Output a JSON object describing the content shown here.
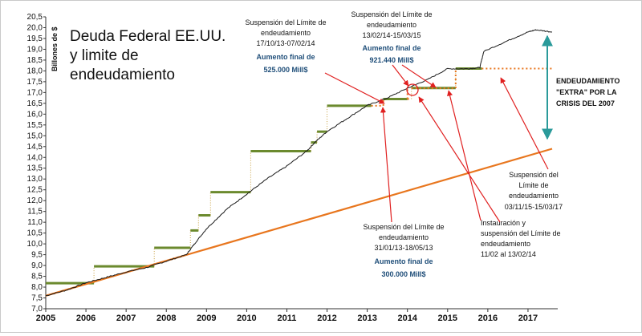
{
  "chart_data": {
    "type": "line",
    "title_lines": [
      "Deuda Federal EE.UU.",
      "y limite de",
      "endeudamiento"
    ],
    "ylabel": "Billones de $",
    "xlabel": "",
    "xlim": [
      2005,
      2017.7
    ],
    "ylim": [
      7.0,
      20.5
    ],
    "y_ticks": [
      "7,0",
      "7,5",
      "8,0",
      "8,5",
      "9,0",
      "9,5",
      "10,0",
      "10,5",
      "11,0",
      "11,5",
      "12,0",
      "12,5",
      "13,0",
      "13,5",
      "14,0",
      "14,5",
      "15,0",
      "15,5",
      "16,0",
      "16,5",
      "17,0",
      "17,5",
      "18,0",
      "18,5",
      "19,0",
      "19,5",
      "20,0",
      "20,5"
    ],
    "x_ticks": [
      "2005",
      "2006",
      "2007",
      "2008",
      "2009",
      "2010",
      "2011",
      "2012",
      "2013",
      "2014",
      "2015",
      "2016",
      "2017"
    ],
    "series": [
      {
        "kind": "debt",
        "points": [
          [
            2005.0,
            7.6
          ],
          [
            2005.5,
            7.85
          ],
          [
            2006.0,
            8.2
          ],
          [
            2006.5,
            8.45
          ],
          [
            2007.0,
            8.7
          ],
          [
            2007.5,
            8.9
          ],
          [
            2008.0,
            9.2
          ],
          [
            2008.5,
            9.5
          ],
          [
            2008.7,
            10.0
          ],
          [
            2009.0,
            10.7
          ],
          [
            2009.5,
            11.6
          ],
          [
            2010.0,
            12.3
          ],
          [
            2010.5,
            13.0
          ],
          [
            2011.0,
            13.6
          ],
          [
            2011.5,
            14.3
          ],
          [
            2011.7,
            14.7
          ],
          [
            2012.0,
            15.2
          ],
          [
            2012.5,
            15.8
          ],
          [
            2013.0,
            16.4
          ],
          [
            2013.5,
            16.75
          ],
          [
            2014.0,
            17.2
          ],
          [
            2014.5,
            17.6
          ],
          [
            2015.0,
            18.1
          ],
          [
            2015.5,
            18.1
          ],
          [
            2015.8,
            18.15
          ],
          [
            2015.9,
            18.9
          ],
          [
            2016.5,
            19.4
          ],
          [
            2017.0,
            19.8
          ],
          [
            2017.2,
            19.9
          ],
          [
            2017.6,
            19.8
          ]
        ]
      },
      {
        "kind": "debt_limit",
        "steps": [
          [
            2005.0,
            2006.2,
            8.18
          ],
          [
            2006.2,
            2007.7,
            8.96
          ],
          [
            2007.7,
            2008.6,
            9.82
          ],
          [
            2008.6,
            2008.8,
            10.62
          ],
          [
            2008.8,
            2009.1,
            11.32
          ],
          [
            2009.1,
            2010.1,
            12.39
          ],
          [
            2010.1,
            2011.6,
            14.29
          ],
          [
            2011.6,
            2011.75,
            14.69
          ],
          [
            2011.75,
            2012.0,
            15.19
          ],
          [
            2012.0,
            2013.1,
            16.39
          ],
          [
            2013.4,
            2014.0,
            16.7
          ],
          [
            2014.1,
            2015.2,
            17.21
          ],
          [
            2015.2,
            2015.85,
            18.11
          ]
        ]
      },
      {
        "kind": "suspension_extra",
        "steps": [
          [
            2013.1,
            2013.4,
            16.39
          ],
          [
            2014.0,
            2014.1,
            16.7
          ],
          [
            2014.1,
            2015.2,
            17.2
          ],
          [
            2015.85,
            2017.6,
            18.11
          ]
        ]
      },
      {
        "kind": "trend",
        "points": [
          [
            2005.0,
            7.6
          ],
          [
            2017.6,
            14.4
          ]
        ]
      }
    ]
  },
  "labels": {
    "debt_end": "19,8",
    "trend_end": "14,4",
    "gap": "5,4"
  },
  "annotations": {
    "extra": [
      "ENDEUDAMIENTO",
      "\"EXTRA\" POR LA",
      "CRISIS DEL 2007"
    ],
    "susp_2013_14": [
      "Suspensión del Límite de",
      "endeudamiento",
      "17/10/13-07/02/14",
      "Aumento final de",
      "525.000 Mill$"
    ],
    "susp_2014_15": [
      "Suspensión del Límite de",
      "endeudamiento",
      "13/02/14-15/03/15",
      "Aumento final de",
      "921.440 Mill$"
    ],
    "susp_2013": [
      "Suspensión del Límite de",
      "endeudamiento",
      "31/01/13-18/05/13",
      "Aumento final de",
      "300.000 Mill$"
    ],
    "inst_2014": [
      "Instauración y",
      "suspensión del Límite de",
      "endeudamiento",
      "11/02 al 13/02/14"
    ],
    "susp_2015_17": [
      "Suspensión del",
      "Límite de",
      "endeudamiento",
      "03/11/15-15/03/17"
    ]
  },
  "colors": {
    "debt": "#1a1a1a",
    "limit": "#6b8a2e",
    "extra": "#e8761e",
    "trend": "#e8761e",
    "arrows": "#e02020",
    "gap_arrow": "#2a9a9a"
  }
}
